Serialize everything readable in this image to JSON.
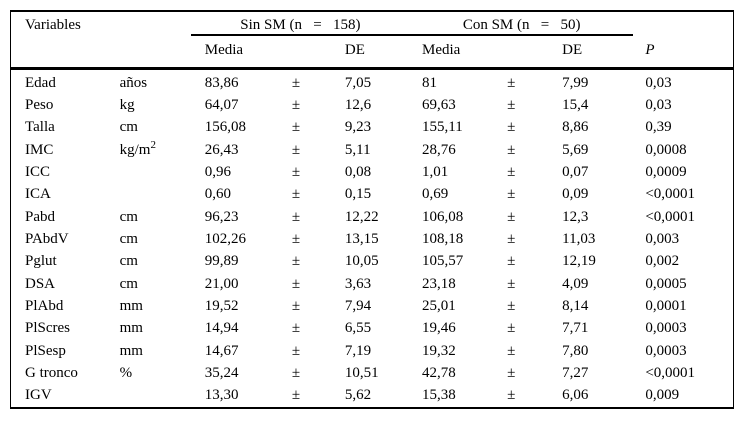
{
  "table": {
    "header": {
      "variables_label": "Variables",
      "group1_label": "Sin SM (n   =   158)",
      "group2_label": "Con SM (n   =   50)",
      "media1_label": "Media",
      "de1_label": "DE",
      "media2_label": "Media",
      "de2_label": "DE",
      "p_label": "P"
    },
    "plus_minus": "±",
    "rows": [
      {
        "variable": "Edad",
        "unit": "años",
        "media1": "83,86",
        "de1": "7,05",
        "media2": "81",
        "de2": "7,99",
        "p": "0,03"
      },
      {
        "variable": "Peso",
        "unit": "kg",
        "media1": "64,07",
        "de1": "12,6",
        "media2": "69,63",
        "de2": "15,4",
        "p": "0,03"
      },
      {
        "variable": "Talla",
        "unit": "cm",
        "media1": "156,08",
        "de1": "9,23",
        "media2": "155,11",
        "de2": "8,86",
        "p": "0,39"
      },
      {
        "variable": "IMC",
        "unit": "kg/m²",
        "media1": "26,43",
        "de1": "5,11",
        "media2": "28,76",
        "de2": "5,69",
        "p": "0,0008"
      },
      {
        "variable": "ICC",
        "unit": "",
        "media1": "0,96",
        "de1": "0,08",
        "media2": "1,01",
        "de2": "0,07",
        "p": "0,0009"
      },
      {
        "variable": "ICA",
        "unit": "",
        "media1": "0,60",
        "de1": "0,15",
        "media2": "0,69",
        "de2": "0,09",
        "p": "<0,0001"
      },
      {
        "variable": "Pabd",
        "unit": "cm",
        "media1": "96,23",
        "de1": "12,22",
        "media2": "106,08",
        "de2": "12,3",
        "p": "<0,0001"
      },
      {
        "variable": "PAbdV",
        "unit": "cm",
        "media1": "102,26",
        "de1": "13,15",
        "media2": "108,18",
        "de2": "11,03",
        "p": "0,003"
      },
      {
        "variable": "Pglut",
        "unit": "cm",
        "media1": "99,89",
        "de1": "10,05",
        "media2": "105,57",
        "de2": "12,19",
        "p": "0,002"
      },
      {
        "variable": "DSA",
        "unit": "cm",
        "media1": "21,00",
        "de1": "3,63",
        "media2": "23,18",
        "de2": "4,09",
        "p": "0,0005"
      },
      {
        "variable": "PlAbd",
        "unit": "mm",
        "media1": "19,52",
        "de1": "7,94",
        "media2": "25,01",
        "de2": "8,14",
        "p": "0,0001"
      },
      {
        "variable": "PlScres",
        "unit": "mm",
        "media1": "14,94",
        "de1": "6,55",
        "media2": "19,46",
        "de2": "7,71",
        "p": "0,0003"
      },
      {
        "variable": "PlSesp",
        "unit": "mm",
        "media1": "14,67",
        "de1": "7,19",
        "media2": "19,32",
        "de2": "7,80",
        "p": "0,0003"
      },
      {
        "variable": "G tronco",
        "unit": "%",
        "media1": "35,24",
        "de1": "10,51",
        "media2": "42,78",
        "de2": "7,27",
        "p": "<0,0001"
      },
      {
        "variable": "IGV",
        "unit": "",
        "media1": "13,30",
        "de1": "5,62",
        "media2": "15,38",
        "de2": "6,06",
        "p": "0,009"
      }
    ]
  }
}
